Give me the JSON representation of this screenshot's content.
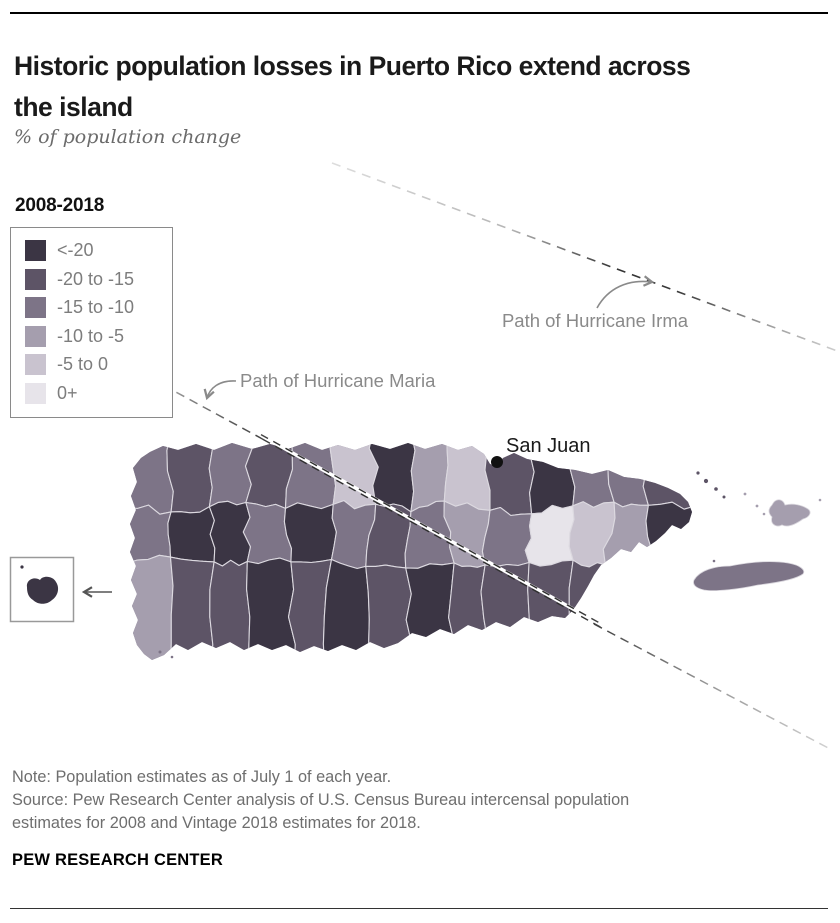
{
  "header": {
    "title": "Historic population losses in Puerto Rico extend across the island",
    "subtitle": "% of population change"
  },
  "legend": {
    "title": "2008-2018",
    "items": [
      {
        "label": "<-20",
        "color": "#3b3544"
      },
      {
        "label": "-20 to -15",
        "color": "#5d5466"
      },
      {
        "label": "-15 to -10",
        "color": "#7d7487"
      },
      {
        "label": "-10 to -5",
        "color": "#a59eae"
      },
      {
        "label": "-5 to 0",
        "color": "#c9c3cf"
      },
      {
        "label": "0+",
        "color": "#e7e4ea"
      }
    ]
  },
  "map": {
    "labels": {
      "san_juan": "San Juan",
      "hurricane_irma": "Path of Hurricane Irma",
      "hurricane_maria": "Path of Hurricane Maria"
    },
    "bin_colors": [
      "#3b3544",
      "#5d5466",
      "#7d7487",
      "#a59eae",
      "#c9c3cf",
      "#e7e4ea"
    ],
    "cell_bins": [
      2,
      2,
      3,
      1,
      0,
      1,
      2,
      0,
      1,
      1,
      2,
      0,
      2,
      0,
      1,
      4,
      2,
      0,
      0,
      1,
      1,
      3,
      2,
      0,
      4,
      3,
      1,
      1,
      2,
      1,
      0,
      5,
      1,
      2,
      4,
      1,
      2,
      3,
      2,
      1,
      0,
      2
    ],
    "vieques_bin": 2,
    "culebra_bin": 3,
    "mona_bin": 0
  },
  "footer": {
    "note": "Note: Population estimates as of July 1 of each year.",
    "source": "Source: Pew Research Center analysis of U.S. Census Bureau intercensal population estimates for 2008 and Vintage 2018 estimates for 2018.",
    "brand": "PEW RESEARCH CENTER"
  },
  "chart_data": {
    "type": "heatmap",
    "subtype": "choropleth-map",
    "region": "Puerto Rico municipalities",
    "title": "Historic population losses in Puerto Rico extend across the island",
    "subtitle": "% of population change",
    "legend_title": "2008-2018",
    "bins": [
      "<-20",
      "-20 to -15",
      "-15 to -10",
      "-10 to -5",
      "-5 to 0",
      "0+"
    ],
    "bin_colors": [
      "#3b3544",
      "#5d5466",
      "#7d7487",
      "#a59eae",
      "#c9c3cf",
      "#e7e4ea"
    ],
    "annotations": [
      "San Juan",
      "Path of Hurricane Irma",
      "Path of Hurricane Maria"
    ],
    "legend_position": "top-left"
  }
}
